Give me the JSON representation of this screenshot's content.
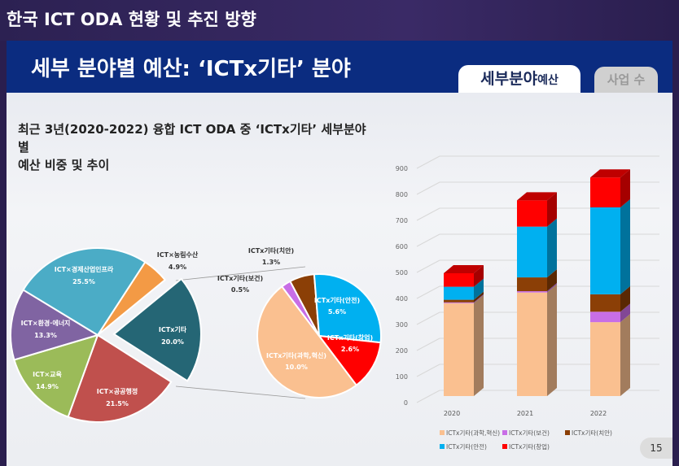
{
  "header": {
    "title": "한국 ICT ODA 현황 및 추진 방향"
  },
  "slide": {
    "title": "세부 분야별 예산: ‘ICTx기타’ 분야",
    "tabs": [
      {
        "label": "세부분야",
        "suffix": "예산",
        "active": true
      },
      {
        "label": "사업 수",
        "active": false
      }
    ],
    "subtitle_line1": "최근 3년(2020-2022) 융합 ICT ODA 중 ‘ICTx기타’ 세부분야별",
    "subtitle_line2": "예산 비중 및 추이",
    "page_number": "15"
  },
  "chart_data": [
    {
      "type": "pie",
      "slices": [
        {
          "label": "ICT×농림수산",
          "value": 4.9,
          "text": "4.9%",
          "color": "#f39a45"
        },
        {
          "label": "ICTx기타",
          "value": 20.0,
          "text": "20.0%",
          "color": "#256675",
          "exploded": true
        },
        {
          "label": "ICT×공공행정",
          "value": 21.5,
          "text": "21.5%",
          "color": "#c0504d"
        },
        {
          "label": "ICT×교육",
          "value": 14.9,
          "text": "14.9%",
          "color": "#9bbb59"
        },
        {
          "label": "ICT×환경·에너지",
          "value": 13.3,
          "text": "13.3%",
          "color": "#8064a2"
        },
        {
          "label": "ICT×경제산업인프라",
          "value": 25.5,
          "text": "25.5%",
          "color": "#4bacc6"
        }
      ]
    },
    {
      "type": "pie",
      "slices": [
        {
          "label": "ICTx기타(치안)",
          "value": 1.3,
          "text": "1.3%",
          "color": "#8b3f06"
        },
        {
          "label": "ICTx기타(안전)",
          "value": 5.6,
          "text": "5.6%",
          "color": "#00b0f0"
        },
        {
          "label": "ICTx기타(창업)",
          "value": 2.6,
          "text": "2.6%",
          "color": "#ff0000"
        },
        {
          "label": "ICTx기타(과학,혁신)",
          "value": 10.0,
          "text": "10.0%",
          "color": "#fac090"
        },
        {
          "label": "ICTx기타(보건)",
          "value": 0.5,
          "text": "0.5%",
          "color": "#c86ee6"
        }
      ]
    },
    {
      "type": "bar",
      "stacked": true,
      "3d": true,
      "categories": [
        "2020",
        "2021",
        "2022"
      ],
      "ylim": [
        0,
        900
      ],
      "yticks": [
        "0",
        "100",
        "200",
        "300",
        "400",
        "500",
        "600",
        "700",
        "800",
        "900"
      ],
      "legend": "bottom",
      "grid": true,
      "series": [
        {
          "name": "ICTx기타(과학,혁신)",
          "color": "#fac090",
          "values": [
            357,
            398,
            284
          ]
        },
        {
          "name": "ICTx기타(보건)",
          "color": "#c86ee6",
          "values": [
            3,
            5,
            40
          ]
        },
        {
          "name": "ICTx기타(치안)",
          "color": "#8b3f06",
          "values": [
            10,
            53,
            67
          ]
        },
        {
          "name": "ICTx기타(안전)",
          "color": "#00b0f0",
          "values": [
            50,
            195,
            334
          ]
        },
        {
          "name": "ICTx기타(창업)",
          "color": "#ff0000",
          "values": [
            52,
            101,
            115
          ]
        }
      ]
    }
  ]
}
